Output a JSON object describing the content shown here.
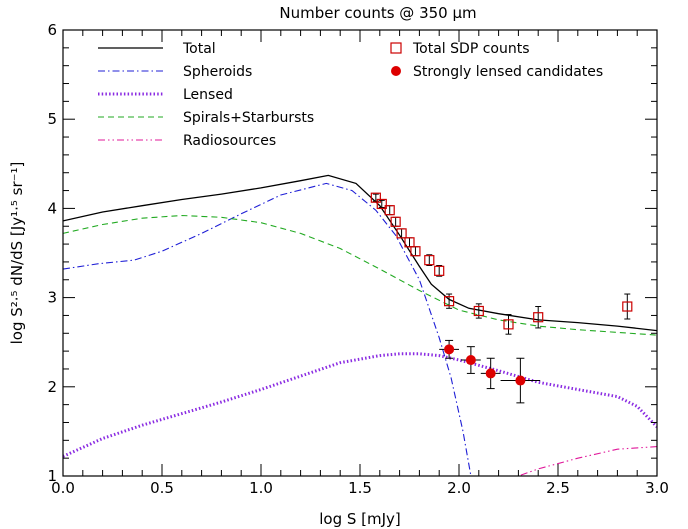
{
  "chart_data": {
    "type": "line",
    "title": "Number counts @ 350 μm",
    "xlabel": "log S [mJy]",
    "ylabel": "log S²·⁵ dN/dS [Jy¹·⁵ sr⁻¹]",
    "xlim": [
      0.0,
      3.0
    ],
    "ylim": [
      1.0,
      6.0
    ],
    "xticks": [
      "0.0",
      "0.5",
      "1.0",
      "1.5",
      "2.0",
      "2.5",
      "3.0"
    ],
    "yticks": [
      "1",
      "2",
      "3",
      "4",
      "5",
      "6"
    ],
    "grid": false,
    "legend_position": "top",
    "series": [
      {
        "name": "Total",
        "color": "#000000",
        "style": "solid",
        "x": [
          0.0,
          0.2,
          0.4,
          0.6,
          0.8,
          1.0,
          1.2,
          1.34,
          1.48,
          1.6,
          1.7,
          1.8,
          1.86,
          1.95,
          2.05,
          2.2,
          2.4,
          2.6,
          2.8,
          3.0
        ],
        "y": [
          3.86,
          3.96,
          4.03,
          4.1,
          4.16,
          4.23,
          4.31,
          4.37,
          4.28,
          4.03,
          3.7,
          3.35,
          3.15,
          2.98,
          2.88,
          2.82,
          2.75,
          2.72,
          2.68,
          2.63
        ]
      },
      {
        "name": "Spheroids",
        "color": "#1f1fd6",
        "style": "dashdot",
        "x": [
          0.0,
          0.18,
          0.36,
          0.5,
          0.7,
          0.9,
          1.1,
          1.33,
          1.46,
          1.58,
          1.68,
          1.8,
          1.9,
          1.96,
          2.02,
          2.06
        ],
        "y": [
          3.32,
          3.38,
          3.42,
          3.52,
          3.72,
          3.94,
          4.15,
          4.28,
          4.2,
          3.98,
          3.7,
          3.2,
          2.55,
          2.1,
          1.5,
          1.0
        ]
      },
      {
        "name": "Lensed",
        "color": "#8a2be2",
        "style": "dotted",
        "x": [
          0.0,
          0.2,
          0.4,
          0.6,
          0.8,
          1.0,
          1.2,
          1.4,
          1.6,
          1.7,
          1.8,
          1.9,
          2.0,
          2.2,
          2.4,
          2.6,
          2.8,
          2.9,
          3.0
        ],
        "y": [
          1.22,
          1.42,
          1.57,
          1.7,
          1.83,
          1.97,
          2.12,
          2.27,
          2.35,
          2.37,
          2.37,
          2.35,
          2.3,
          2.18,
          2.05,
          1.97,
          1.89,
          1.78,
          1.55
        ]
      },
      {
        "name": "Spirals+Starbursts",
        "color": "#22aa22",
        "style": "dashed",
        "x": [
          0.0,
          0.2,
          0.4,
          0.6,
          0.8,
          1.0,
          1.2,
          1.4,
          1.6,
          1.8,
          2.0,
          2.2,
          2.4,
          2.6,
          2.8,
          3.0
        ],
        "y": [
          3.72,
          3.82,
          3.89,
          3.92,
          3.9,
          3.84,
          3.72,
          3.55,
          3.32,
          3.08,
          2.86,
          2.75,
          2.68,
          2.64,
          2.61,
          2.58
        ]
      },
      {
        "name": "Radiosources",
        "color": "#e0189a",
        "style": "dashdotdot",
        "x": [
          2.05,
          2.2,
          2.4,
          2.6,
          2.8,
          3.0
        ],
        "y": [
          0.75,
          0.92,
          1.08,
          1.2,
          1.3,
          1.33
        ]
      }
    ],
    "points": [
      {
        "name": "Total SDP counts",
        "marker": "open-square",
        "color": "#cc0000",
        "x": [
          1.58,
          1.61,
          1.65,
          1.68,
          1.71,
          1.75,
          1.78,
          1.85,
          1.9,
          1.95,
          2.1,
          2.25,
          2.4,
          2.85
        ],
        "y": [
          4.12,
          4.05,
          3.98,
          3.85,
          3.72,
          3.62,
          3.52,
          3.42,
          3.3,
          2.96,
          2.85,
          2.7,
          2.78,
          2.9
        ],
        "err": [
          0.04,
          0.04,
          0.05,
          0.05,
          0.05,
          0.05,
          0.05,
          0.06,
          0.06,
          0.08,
          0.08,
          0.11,
          0.12,
          0.14
        ]
      },
      {
        "name": "Strongly lensed candidates",
        "marker": "filled-circle",
        "color": "#dd0000",
        "x": [
          1.95,
          2.06,
          2.16,
          2.31
        ],
        "y": [
          2.42,
          2.3,
          2.15,
          2.07
        ],
        "xerr": [
          0.05,
          0.05,
          0.05,
          0.1
        ],
        "err": [
          0.1,
          0.15,
          0.17,
          0.25
        ]
      }
    ]
  }
}
